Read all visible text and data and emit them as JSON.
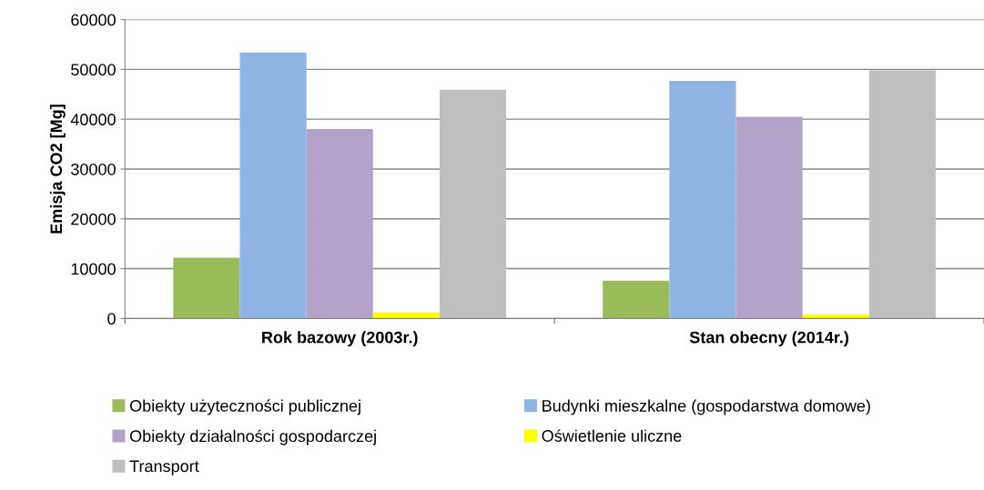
{
  "chart_data": {
    "type": "bar",
    "ylabel": "Emisja CO2 [Mg]",
    "categories": [
      "Rok bazowy (2003r.)",
      "Stan obecny (2014r.)"
    ],
    "series": [
      {
        "name": "Obiekty użyteczności publicznej",
        "color": "#9bbb59",
        "values": [
          12200,
          7600
        ]
      },
      {
        "name": "Budynki mieszkalne (gospodarstwa domowe)",
        "color": "#8eb4e3",
        "values": [
          53400,
          47700
        ]
      },
      {
        "name": "Obiekty działalności gospodarczej",
        "color": "#b3a2c7",
        "values": [
          38000,
          40500
        ]
      },
      {
        "name": "Oświetlenie uliczne",
        "color": "#ffff00",
        "values": [
          1200,
          800
        ]
      },
      {
        "name": "Transport",
        "color": "#bfbfbf",
        "values": [
          45900,
          49800
        ]
      }
    ],
    "ylim": [
      0,
      60000
    ],
    "yticks": [
      0,
      10000,
      20000,
      30000,
      40000,
      50000,
      60000
    ],
    "grid": "y",
    "legend": "bottom"
  }
}
